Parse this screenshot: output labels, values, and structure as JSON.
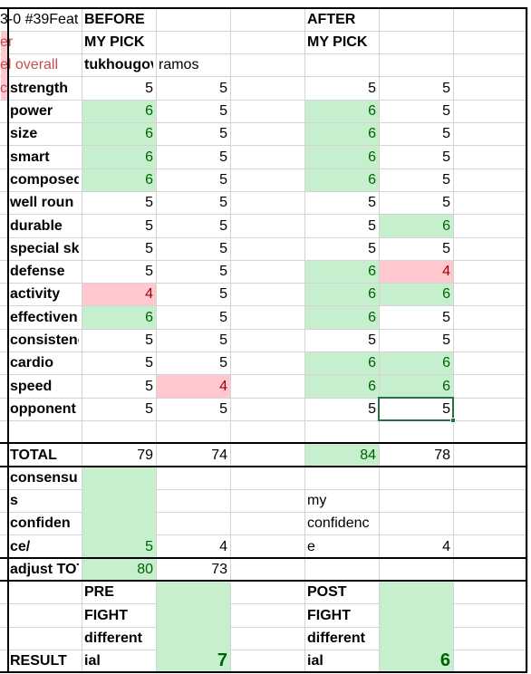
{
  "title_fragment": "3-0 #39Feat",
  "side_fragments": [
    "er",
    "el overall",
    "c"
  ],
  "sections": {
    "before": "BEFORE",
    "after": "AFTER"
  },
  "pick_labels": [
    "MY PICK",
    "MY PICK"
  ],
  "fighters": [
    "tukhougov",
    "ramos"
  ],
  "attributes": [
    {
      "label": "strength",
      "before": [
        5,
        5
      ],
      "after": [
        5,
        5
      ],
      "before_fill": [
        null,
        null
      ],
      "after_fill": [
        null,
        null
      ]
    },
    {
      "label": "power",
      "before": [
        6,
        5
      ],
      "after": [
        6,
        5
      ],
      "before_fill": [
        "green",
        null
      ],
      "after_fill": [
        "green",
        null
      ]
    },
    {
      "label": "size",
      "before": [
        6,
        5
      ],
      "after": [
        6,
        5
      ],
      "before_fill": [
        "green",
        null
      ],
      "after_fill": [
        "green",
        null
      ]
    },
    {
      "label": "smart",
      "before": [
        6,
        5
      ],
      "after": [
        6,
        5
      ],
      "before_fill": [
        "green",
        null
      ],
      "after_fill": [
        "green",
        null
      ]
    },
    {
      "label": "composed",
      "before": [
        6,
        5
      ],
      "after": [
        6,
        5
      ],
      "before_fill": [
        "green",
        null
      ],
      "after_fill": [
        "green",
        null
      ]
    },
    {
      "label": "well roun",
      "before": [
        5,
        5
      ],
      "after": [
        5,
        5
      ],
      "before_fill": [
        null,
        null
      ],
      "after_fill": [
        null,
        null
      ]
    },
    {
      "label": "durable",
      "before": [
        5,
        5
      ],
      "after": [
        5,
        6
      ],
      "before_fill": [
        null,
        null
      ],
      "after_fill": [
        null,
        "green"
      ]
    },
    {
      "label": "special ski",
      "before": [
        5,
        5
      ],
      "after": [
        5,
        5
      ],
      "before_fill": [
        null,
        null
      ],
      "after_fill": [
        null,
        null
      ]
    },
    {
      "label": "defense",
      "before": [
        5,
        5
      ],
      "after": [
        6,
        4
      ],
      "before_fill": [
        null,
        null
      ],
      "after_fill": [
        "green",
        "red"
      ]
    },
    {
      "label": "activity",
      "before": [
        4,
        5
      ],
      "after": [
        6,
        6
      ],
      "before_fill": [
        "red",
        null
      ],
      "after_fill": [
        "green",
        "green"
      ]
    },
    {
      "label": "effectiven",
      "before": [
        6,
        5
      ],
      "after": [
        6,
        5
      ],
      "before_fill": [
        "green",
        null
      ],
      "after_fill": [
        "green",
        null
      ]
    },
    {
      "label": "consistenc",
      "before": [
        5,
        5
      ],
      "after": [
        5,
        5
      ],
      "before_fill": [
        null,
        null
      ],
      "after_fill": [
        null,
        null
      ]
    },
    {
      "label": "cardio",
      "before": [
        5,
        5
      ],
      "after": [
        6,
        6
      ],
      "before_fill": [
        null,
        null
      ],
      "after_fill": [
        "green",
        "green"
      ]
    },
    {
      "label": "speed",
      "before": [
        5,
        4
      ],
      "after": [
        6,
        6
      ],
      "before_fill": [
        null,
        "red"
      ],
      "after_fill": [
        "green",
        "green"
      ]
    },
    {
      "label": "opponent",
      "before": [
        5,
        5
      ],
      "after": [
        5,
        5
      ],
      "before_fill": [
        null,
        null
      ],
      "after_fill": [
        null,
        null
      ]
    }
  ],
  "total": {
    "label": "TOTAL",
    "before": [
      79,
      74
    ],
    "after": [
      84,
      78
    ],
    "before_fill": [
      null,
      null
    ],
    "after_fill": [
      "green",
      null
    ]
  },
  "confidence": {
    "label_lines": [
      "consensu",
      "s",
      "confiden",
      "ce/"
    ],
    "before": [
      5,
      4
    ],
    "before_fill": [
      "green",
      null
    ],
    "after_label_lines": [
      "my",
      "confidenc",
      "e"
    ],
    "after_value": 4
  },
  "adjust": {
    "label": "adjust TOT",
    "before": [
      80,
      73
    ],
    "before_fill": [
      "green",
      null
    ]
  },
  "result": {
    "label": "RESULT",
    "pre_lines": [
      "PRE",
      "FIGHT",
      "different",
      "ial"
    ],
    "pre_value": 7,
    "post_lines": [
      "POST",
      "FIGHT",
      "different",
      "ial"
    ],
    "post_value": 6
  }
}
